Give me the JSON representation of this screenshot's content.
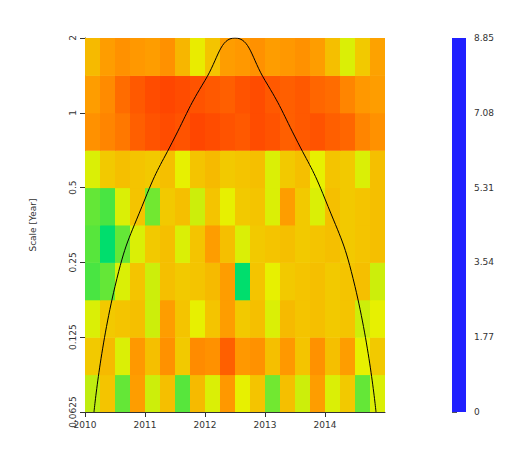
{
  "chart_data": {
    "type": "heatmap",
    "y_label": "Scale [Year]",
    "log": "y",
    "xlim": [
      2010,
      2015
    ],
    "xticks": [
      2010,
      2011,
      2012,
      2013,
      2014
    ],
    "ylim": [
      0.0625,
      2
    ],
    "yticks": [
      0.0625,
      0.125,
      0.25,
      0.5,
      1,
      2
    ],
    "x_edges": [
      2010,
      2010.25,
      2010.5,
      2010.75,
      2011,
      2011.25,
      2011.5,
      2011.75,
      2012,
      2012.25,
      2012.5,
      2012.75,
      2013,
      2013.25,
      2013.5,
      2013.75,
      2014,
      2014.25,
      2014.5,
      2014.75,
      2015
    ],
    "scale_edges": [
      0.0625,
      0.0884,
      0.125,
      0.1768,
      0.25,
      0.3536,
      0.5,
      0.7071,
      1,
      1.4142,
      2
    ],
    "power": [
      [
        5.0,
        6.2,
        4.3,
        7.0,
        5.1,
        6.3,
        4.2,
        6.4,
        5.2,
        7.1,
        5.3,
        6.2,
        4.4,
        6.3,
        5.1,
        7.0,
        5.2,
        6.1,
        4.3,
        5.2
      ],
      [
        6.1,
        6.4,
        5.2,
        7.1,
        6.3,
        7.2,
        6.1,
        7.3,
        7.2,
        8.0,
        7.1,
        7.2,
        6.3,
        7.1,
        6.2,
        7.2,
        6.3,
        7.0,
        5.3,
        6.1
      ],
      [
        5.2,
        6.1,
        6.2,
        6.3,
        5.1,
        7.0,
        6.2,
        5.3,
        6.2,
        7.0,
        6.1,
        6.3,
        5.2,
        6.4,
        6.2,
        6.3,
        6.1,
        6.2,
        5.1,
        5.3
      ],
      [
        4.1,
        4.3,
        5.2,
        6.2,
        5.1,
        6.3,
        6.1,
        6.2,
        6.4,
        7.0,
        3.4,
        6.2,
        5.3,
        6.1,
        6.2,
        6.3,
        6.1,
        6.2,
        6.3,
        5.1
      ],
      [
        4.2,
        3.4,
        4.3,
        5.2,
        6.1,
        6.3,
        5.2,
        6.2,
        7.0,
        6.3,
        5.2,
        6.1,
        6.2,
        6.3,
        6.1,
        6.2,
        6.3,
        6.1,
        6.2,
        6.3
      ],
      [
        4.3,
        4.1,
        5.2,
        6.2,
        4.4,
        6.1,
        6.3,
        5.1,
        6.2,
        5.3,
        6.1,
        6.2,
        5.2,
        7.0,
        6.1,
        5.2,
        6.3,
        6.1,
        6.2,
        6.3
      ],
      [
        5.2,
        6.1,
        6.3,
        6.2,
        6.1,
        6.3,
        5.3,
        6.2,
        6.4,
        6.1,
        6.2,
        6.3,
        5.2,
        6.1,
        6.3,
        5.3,
        6.2,
        6.1,
        5.2,
        6.3
      ],
      [
        7.2,
        7.4,
        7.6,
        8.0,
        8.2,
        8.3,
        8.2,
        8.4,
        8.3,
        8.2,
        8.1,
        8.3,
        8.2,
        8.0,
        8.1,
        8.2,
        8.0,
        7.9,
        7.4,
        7.2
      ],
      [
        7.0,
        7.3,
        7.8,
        8.1,
        8.3,
        8.4,
        8.3,
        8.2,
        8.1,
        8.0,
        8.2,
        8.3,
        8.1,
        8.0,
        8.1,
        7.9,
        7.8,
        7.4,
        7.1,
        7.0
      ],
      [
        6.4,
        7.0,
        7.2,
        7.1,
        7.0,
        7.2,
        6.5,
        5.4,
        6.2,
        7.0,
        7.1,
        7.2,
        7.0,
        7.1,
        7.2,
        7.0,
        6.3,
        5.2,
        6.1,
        6.9
      ]
    ],
    "cone": {
      "x": [
        2010.15,
        2010.5,
        2011,
        2011.5,
        2012,
        2012.5,
        2013,
        2013.5,
        2014,
        2014.5,
        2014.85
      ],
      "y": [
        0.0625,
        0.2,
        0.45,
        0.8,
        1.35,
        2,
        1.35,
        0.8,
        0.45,
        0.2,
        0.0625
      ]
    },
    "colorbar": {
      "range": [
        0,
        8.85
      ],
      "ticks": [
        0,
        1.77,
        3.54,
        5.31,
        7.08,
        8.85
      ]
    }
  }
}
